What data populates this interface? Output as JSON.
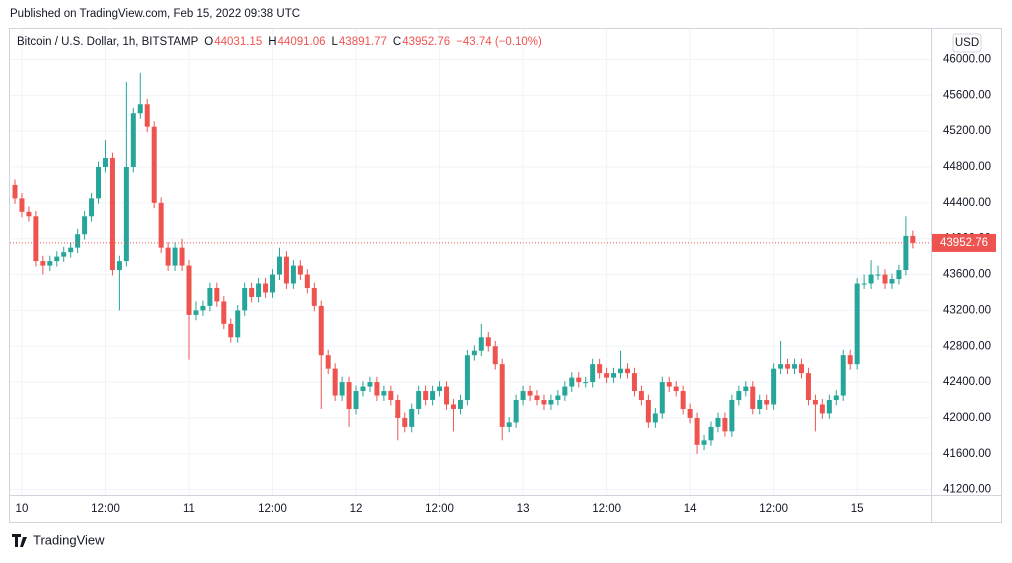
{
  "published": "Published on TradingView.com, Feb 15, 2022 09:38 UTC",
  "brand": "TradingView",
  "chart_data": {
    "type": "candlestick",
    "title": "Bitcoin / U.S. Dollar, 1h, BITSTAMP",
    "ohlc_labels": [
      "O",
      "H",
      "L",
      "C"
    ],
    "change_label": "−43.74 (−0.10%)",
    "currency": "USD",
    "up_color": "#26a69a",
    "down_color": "#ef5350",
    "grid": true,
    "categories": [
      null,
      "10",
      null,
      null,
      null,
      null,
      null,
      null,
      null,
      null,
      null,
      null,
      null,
      "12:00",
      null,
      null,
      null,
      null,
      null,
      null,
      null,
      null,
      null,
      null,
      null,
      "11",
      null,
      null,
      null,
      null,
      null,
      null,
      null,
      null,
      null,
      null,
      null,
      "12:00",
      null,
      null,
      null,
      null,
      null,
      null,
      null,
      null,
      null,
      null,
      null,
      "12",
      null,
      null,
      null,
      null,
      null,
      null,
      null,
      null,
      null,
      null,
      null,
      "12:00",
      null,
      null,
      null,
      null,
      null,
      null,
      null,
      null,
      null,
      null,
      null,
      "13",
      null,
      null,
      null,
      null,
      null,
      null,
      null,
      null,
      null,
      null,
      null,
      "12:00",
      null,
      null,
      null,
      null,
      null,
      null,
      null,
      null,
      null,
      null,
      null,
      "14",
      null,
      null,
      null,
      null,
      null,
      null,
      null,
      null,
      null,
      null,
      null,
      "12:00",
      null,
      null,
      null,
      null,
      null,
      null,
      null,
      null,
      null,
      null,
      null,
      "15",
      null,
      null,
      null,
      null,
      null,
      null,
      null,
      null
    ],
    "open": [
      44600,
      44450,
      44300,
      44250,
      43750,
      43700,
      43750,
      43800,
      43850,
      43900,
      44050,
      44250,
      44450,
      44800,
      44900,
      43650,
      43750,
      44800,
      45400,
      45500,
      45250,
      44400,
      43900,
      43700,
      43900,
      43700,
      43150,
      43200,
      43250,
      43450,
      43300,
      43050,
      42900,
      43200,
      43450,
      43350,
      43500,
      43400,
      43600,
      43800,
      43500,
      43700,
      43600,
      43450,
      43250,
      42700,
      42550,
      42250,
      42400,
      42100,
      42300,
      42350,
      42400,
      42250,
      42300,
      42200,
      42000,
      41900,
      42100,
      42300,
      42200,
      42300,
      42350,
      42150,
      42100,
      42200,
      42700,
      42750,
      42900,
      42800,
      42600,
      41900,
      41950,
      42200,
      42300,
      42250,
      42200,
      42150,
      42200,
      42250,
      42350,
      42450,
      42400,
      42400,
      42600,
      42500,
      42450,
      42500,
      42550,
      42500,
      42300,
      42200,
      41950,
      42050,
      42400,
      42350,
      42300,
      42100,
      42000,
      41700,
      41750,
      41900,
      42000,
      41850,
      42200,
      42300,
      42350,
      42100,
      42200,
      42150,
      42550,
      42600,
      42550,
      42600,
      42500,
      42200,
      42150,
      42050,
      42200,
      42250,
      42700,
      42600,
      43500,
      43500,
      43600,
      43600,
      43500,
      43550,
      43650,
      44031.15
    ],
    "high": [
      44660,
      44510,
      44360,
      44310,
      43810,
      43810,
      43860,
      43910,
      43960,
      44110,
      44310,
      44510,
      44860,
      45100,
      44960,
      43810,
      45750,
      45460,
      45850,
      45560,
      45310,
      44460,
      43960,
      43960,
      44000,
      43760,
      43300,
      43310,
      43510,
      43510,
      43360,
      43110,
      43260,
      43510,
      43510,
      43560,
      43560,
      43660,
      43900,
      43860,
      43760,
      43760,
      43660,
      43510,
      43310,
      42760,
      42610,
      42460,
      42460,
      42360,
      42410,
      42460,
      42460,
      42360,
      42360,
      42260,
      42060,
      42160,
      42360,
      42360,
      42360,
      42410,
      42410,
      42210,
      42260,
      42760,
      42810,
      43050,
      42960,
      42860,
      42660,
      42010,
      42260,
      42360,
      42360,
      42310,
      42260,
      42260,
      42310,
      42410,
      42510,
      42510,
      42460,
      42660,
      42660,
      42560,
      42560,
      42750,
      42610,
      42560,
      42360,
      42260,
      42110,
      42460,
      42460,
      42410,
      42360,
      42160,
      42060,
      41810,
      41960,
      42060,
      42060,
      42260,
      42360,
      42410,
      42410,
      42260,
      42260,
      42610,
      42860,
      42660,
      42660,
      42660,
      42560,
      42260,
      42210,
      42260,
      42310,
      42760,
      42760,
      43560,
      43600,
      43760,
      43700,
      43660,
      43610,
      43710,
      44250,
      44091.06
    ],
    "low": [
      44390,
      44240,
      44190,
      43690,
      43600,
      43640,
      43690,
      43740,
      43790,
      43840,
      43990,
      44190,
      44390,
      44740,
      43590,
      43200,
      43690,
      44740,
      45340,
      45190,
      44340,
      43840,
      43640,
      43640,
      43640,
      42650,
      43090,
      43140,
      43190,
      43240,
      42990,
      42840,
      42840,
      43140,
      43290,
      43290,
      43340,
      43340,
      43540,
      43440,
      43440,
      43540,
      43390,
      43190,
      42100,
      42490,
      42190,
      42190,
      41900,
      42040,
      42240,
      42290,
      42190,
      42190,
      42140,
      41750,
      41840,
      41840,
      42040,
      42140,
      42140,
      42240,
      42090,
      41850,
      42040,
      42140,
      42640,
      42690,
      42740,
      42540,
      41750,
      41840,
      41890,
      42140,
      42190,
      42140,
      42090,
      42090,
      42140,
      42190,
      42290,
      42340,
      42340,
      42340,
      42440,
      42390,
      42390,
      42440,
      42440,
      42240,
      42140,
      41890,
      41890,
      41990,
      42290,
      42240,
      42040,
      41940,
      41600,
      41640,
      41690,
      41840,
      41790,
      41790,
      42140,
      42240,
      42040,
      42040,
      42090,
      42090,
      42490,
      42490,
      42490,
      42440,
      42140,
      41850,
      41990,
      41990,
      42140,
      42190,
      42540,
      42540,
      43440,
      43440,
      43540,
      43440,
      43440,
      43490,
      43590,
      43891.77
    ],
    "close": [
      44450,
      44300,
      44250,
      43750,
      43700,
      43750,
      43800,
      43850,
      43900,
      44050,
      44250,
      44450,
      44800,
      44900,
      43650,
      43750,
      44800,
      45400,
      45500,
      45250,
      44400,
      43900,
      43700,
      43900,
      43700,
      43150,
      43200,
      43250,
      43450,
      43300,
      43050,
      42900,
      43200,
      43450,
      43350,
      43500,
      43400,
      43600,
      43800,
      43500,
      43700,
      43600,
      43450,
      43250,
      42700,
      42550,
      42250,
      42400,
      42100,
      42300,
      42350,
      42400,
      42250,
      42300,
      42200,
      42000,
      41900,
      42100,
      42300,
      42200,
      42300,
      42350,
      42150,
      42100,
      42200,
      42700,
      42750,
      42900,
      42800,
      42600,
      41900,
      41950,
      42200,
      42300,
      42250,
      42200,
      42150,
      42200,
      42250,
      42350,
      42450,
      42400,
      42400,
      42600,
      42500,
      42450,
      42500,
      42550,
      42500,
      42300,
      42200,
      41950,
      42050,
      42400,
      42350,
      42300,
      42100,
      42000,
      41700,
      41750,
      41900,
      42000,
      41850,
      42200,
      42300,
      42350,
      42100,
      42200,
      42150,
      42550,
      42600,
      42550,
      42600,
      42500,
      42200,
      42150,
      42050,
      42200,
      42250,
      42700,
      42600,
      43500,
      43500,
      43600,
      43600,
      43500,
      43550,
      43650,
      44031.15,
      43952.76
    ],
    "ylim": [
      41140,
      46340
    ],
    "yticks": [
      {
        "value": 41200,
        "label": "41200.00"
      },
      {
        "value": 41600,
        "label": "41600.00"
      },
      {
        "value": 42000,
        "label": "42000.00"
      },
      {
        "value": 42400,
        "label": "42400.00"
      },
      {
        "value": 42800,
        "label": "42800.00"
      },
      {
        "value": 43200,
        "label": "43200.00"
      },
      {
        "value": 43600,
        "label": "43600.00"
      },
      {
        "value": 44000,
        "label": "44000.00"
      },
      {
        "value": 44400,
        "label": "44400.00"
      },
      {
        "value": 44800,
        "label": "44800.00"
      },
      {
        "value": 45200,
        "label": "45200.00"
      },
      {
        "value": 45600,
        "label": "45600.00"
      },
      {
        "value": 46000,
        "label": "46000.00"
      }
    ]
  }
}
